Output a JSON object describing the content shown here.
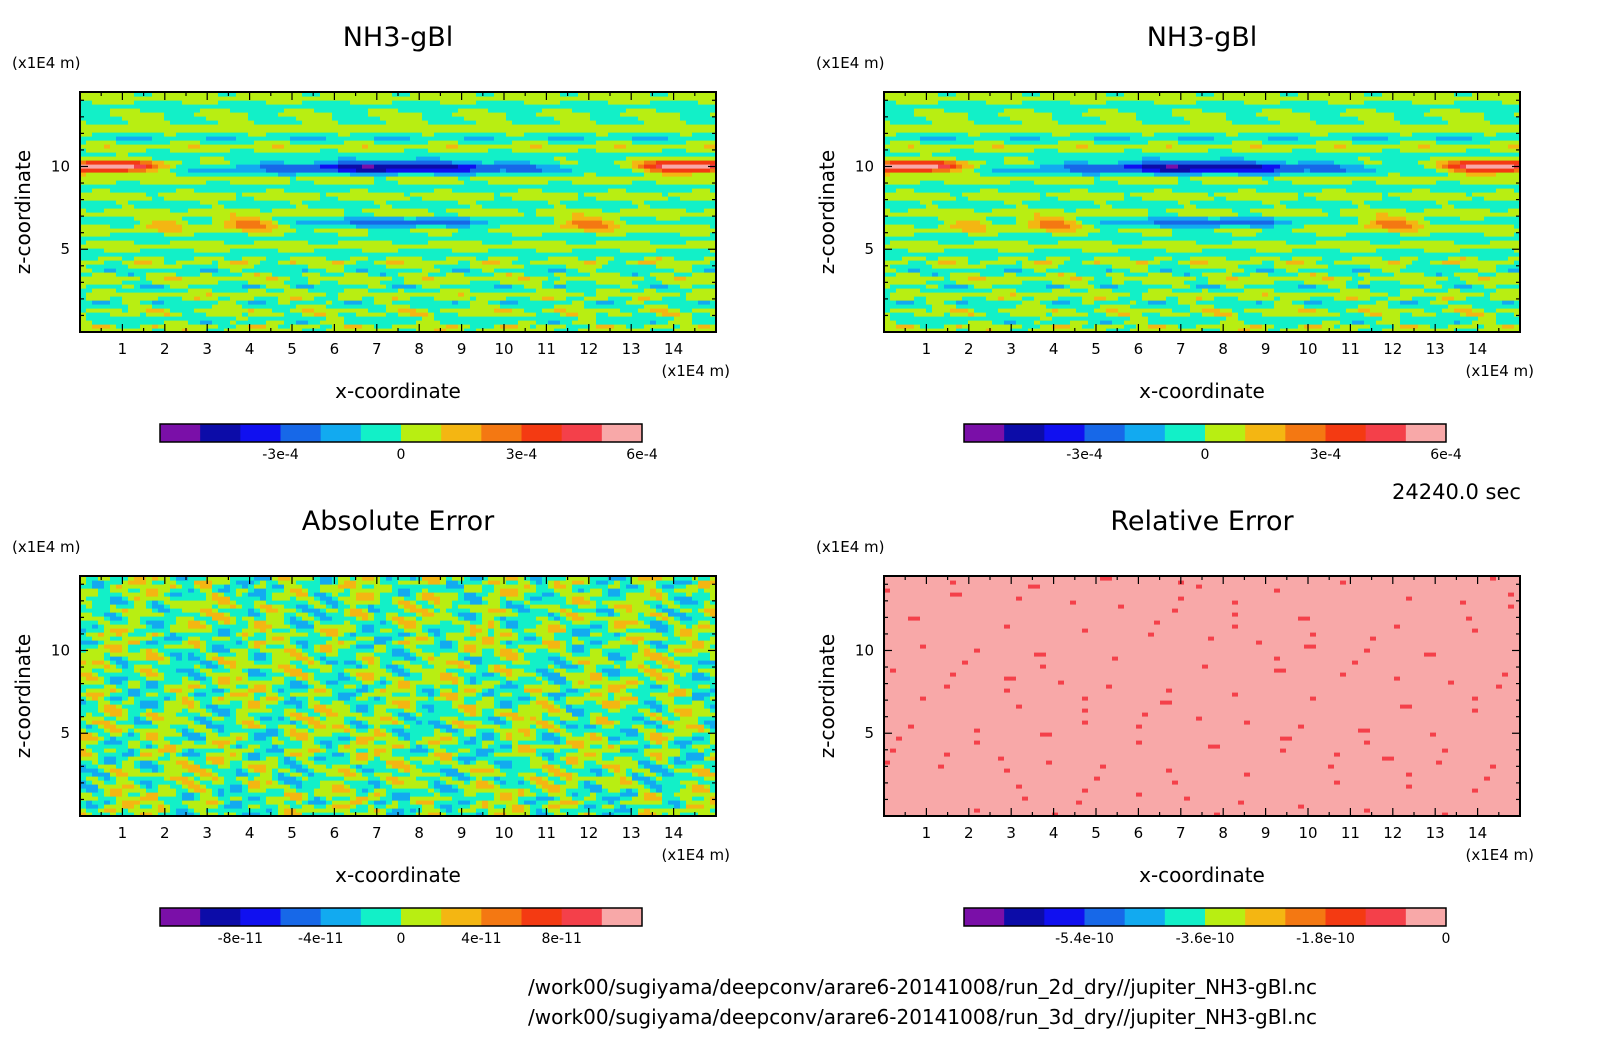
{
  "timestamp": "24240.0 sec",
  "footer": {
    "line1": "/work00/sugiyama/deepconv/arare6-20141008/run_2d_dry//jupiter_NH3-gBl.nc",
    "line2": "/work00/sugiyama/deepconv/arare6-20141008/run_3d_dry//jupiter_NH3-gBl.nc"
  },
  "colors": {
    "palette11": [
      "#7a0fa8",
      "#0c0ca8",
      "#1010f0",
      "#1768e8",
      "#12aaf0",
      "#12f0c8",
      "#b8ee12",
      "#f4b612",
      "#f47812",
      "#f43a12",
      "#f4404a",
      "#f8a8a8"
    ],
    "palette_rel": [
      "#7a0fa8",
      "#0c0ca8",
      "#1010f0",
      "#1768e8",
      "#12aaf0",
      "#12f0c8",
      "#b8ee12",
      "#f4b612",
      "#f47812",
      "#f43a12",
      "#f4404a",
      "#f8a8a8"
    ]
  },
  "chart_data": [
    {
      "type": "heatmap",
      "title": "NH3-gBl",
      "xlabel": "x-coordinate",
      "ylabel": "z-coordinate",
      "xunit": "(x1E4 m)",
      "yunit": "(x1E4 m)",
      "xlim": [
        0,
        15
      ],
      "ylim": [
        0,
        14.5
      ],
      "xticks": [
        1,
        2,
        3,
        4,
        5,
        6,
        7,
        8,
        9,
        10,
        11,
        12,
        13,
        14
      ],
      "yticks": [
        5,
        10
      ],
      "field": "nh3",
      "colorbar": {
        "levels": [
          -0.0005,
          -0.0004,
          -0.0003,
          -0.0002,
          -0.0001,
          0,
          0.0001,
          0.0002,
          0.0003,
          0.0004,
          0.0005,
          0.0006,
          0.0007
        ],
        "ticks": [
          -0.0003,
          0,
          0.0003,
          0.0006
        ],
        "tick_labels": [
          "-3e-4",
          "0",
          "3e-4",
          "6e-4"
        ]
      }
    },
    {
      "type": "heatmap",
      "title": "NH3-gBl",
      "xlabel": "x-coordinate",
      "ylabel": "z-coordinate",
      "xunit": "(x1E4 m)",
      "yunit": "(x1E4 m)",
      "xlim": [
        0,
        15
      ],
      "ylim": [
        0,
        14.5
      ],
      "xticks": [
        1,
        2,
        3,
        4,
        5,
        6,
        7,
        8,
        9,
        10,
        11,
        12,
        13,
        14
      ],
      "yticks": [
        5,
        10
      ],
      "field": "nh3",
      "colorbar": {
        "levels": [
          -0.0005,
          -0.0004,
          -0.0003,
          -0.0002,
          -0.0001,
          0,
          0.0001,
          0.0002,
          0.0003,
          0.0004,
          0.0005,
          0.0006,
          0.0007
        ],
        "ticks": [
          -0.0003,
          0,
          0.0003,
          0.0006
        ],
        "tick_labels": [
          "-3e-4",
          "0",
          "3e-4",
          "6e-4"
        ]
      }
    },
    {
      "type": "heatmap",
      "title": "Absolute Error",
      "xlabel": "x-coordinate",
      "ylabel": "z-coordinate",
      "xunit": "(x1E4 m)",
      "yunit": "(x1E4 m)",
      "xlim": [
        0,
        15
      ],
      "ylim": [
        0,
        14.5
      ],
      "xticks": [
        1,
        2,
        3,
        4,
        5,
        6,
        7,
        8,
        9,
        10,
        11,
        12,
        13,
        14
      ],
      "yticks": [
        5,
        10
      ],
      "field": "abs",
      "colorbar": {
        "levels": [
          -1e-10,
          -8e-11,
          -6e-11,
          -4e-11,
          -2e-11,
          0,
          2e-11,
          4e-11,
          6e-11,
          8e-11,
          1e-10
        ],
        "ticks": [
          -8e-11,
          -4e-11,
          0,
          4e-11,
          8e-11
        ],
        "tick_labels": [
          "-8e-11",
          "-4e-11",
          "0",
          "4e-11",
          "8e-11"
        ]
      }
    },
    {
      "type": "heatmap",
      "title": "Relative Error",
      "xlabel": "x-coordinate",
      "ylabel": "z-coordinate",
      "xunit": "(x1E4 m)",
      "yunit": "(x1E4 m)",
      "xlim": [
        0,
        15
      ],
      "ylim": [
        0,
        14.5
      ],
      "xticks": [
        1,
        2,
        3,
        4,
        5,
        6,
        7,
        8,
        9,
        10,
        11,
        12,
        13,
        14
      ],
      "yticks": [
        5,
        10
      ],
      "field": "rel",
      "colorbar": {
        "levels": [
          -6.6e-10,
          -6e-10,
          -5.4e-10,
          -4.8e-10,
          -4.2e-10,
          -3.6e-10,
          -3e-10,
          -2.4e-10,
          -1.8e-10,
          -1.2e-10,
          -6e-11,
          0,
          6e-11
        ],
        "ticks": [
          -5.4e-10,
          -3.6e-10,
          -1.8e-10,
          0
        ],
        "tick_labels": [
          "-5.4e-10",
          "-3.6e-10",
          "-1.8e-10",
          "0"
        ]
      }
    }
  ]
}
